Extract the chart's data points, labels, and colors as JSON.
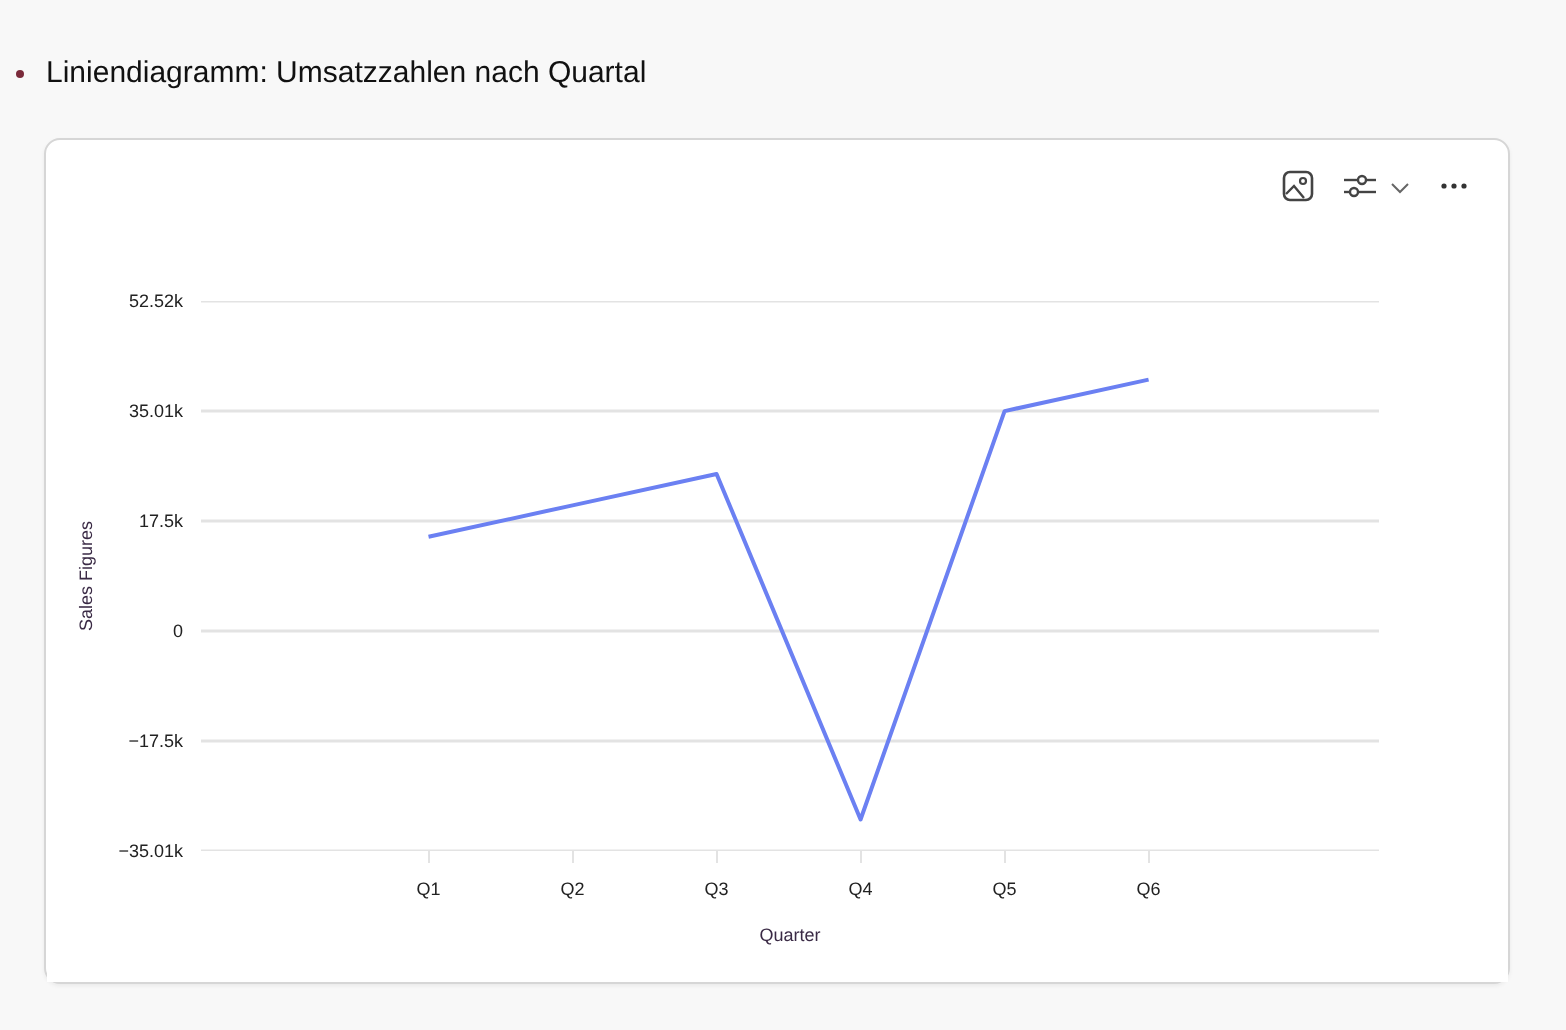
{
  "chart_data": {
    "type": "line",
    "title": "Liniendiagramm: Umsatzzahlen nach Quartal",
    "xlabel": "Quarter",
    "ylabel": "Sales Figures",
    "categories": [
      "Q1",
      "Q2",
      "Q3",
      "Q4",
      "Q5",
      "Q6"
    ],
    "series": [
      {
        "color": "#6b80f2",
        "values": [
          15000,
          20000,
          25000,
          -30000,
          35000,
          40000
        ]
      }
    ],
    "ylim": [
      -35010,
      52520
    ],
    "yticks": [
      {
        "value": 52520,
        "label": "52.52k"
      },
      {
        "value": 35010,
        "label": "35.01k"
      },
      {
        "value": 17500,
        "label": "17.5k"
      },
      0,
      {
        "value": -17500,
        "label": "−17.5k"
      },
      {
        "value": -35010,
        "label": "−35.01k"
      }
    ],
    "grid": "y",
    "line_style": "solid"
  }
}
